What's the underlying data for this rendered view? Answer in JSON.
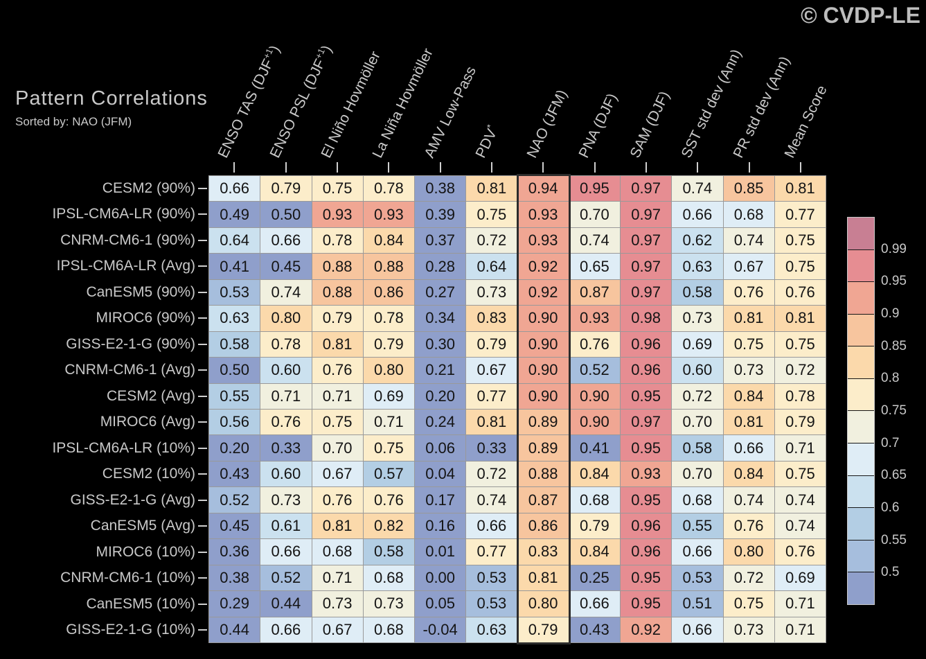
{
  "watermark": "© CVDP-LE",
  "chart_data": {
    "type": "heatmap",
    "title": "Pattern Correlations",
    "subtitle": "Sorted by: NAO (JFM)",
    "sorted_by": "NAO (JFM)",
    "columns": [
      {
        "text": "ENSO TAS (DJF",
        "sup": "+1",
        "post": ")"
      },
      {
        "text": "ENSO PSL (DJF",
        "sup": "+1",
        "post": ")"
      },
      {
        "text": "El Niño Hovmöller"
      },
      {
        "text": "La Niña Hovmöller"
      },
      {
        "text": "AMV Low-Pass"
      },
      {
        "text": "PDV",
        "sup": "*"
      },
      {
        "text": "NAO (JFM)"
      },
      {
        "text": "PNA (DJF)"
      },
      {
        "text": "SAM (DJF)"
      },
      {
        "text": "SST std dev (Ann)"
      },
      {
        "text": "PR std dev (Ann)"
      },
      {
        "text": "Mean Score"
      }
    ],
    "highlighted_column_index": 6,
    "rows": [
      "CESM2 (90%)",
      "IPSL-CM6A-LR (90%)",
      "CNRM-CM6-1 (90%)",
      "IPSL-CM6A-LR (Avg)",
      "CanESM5 (90%)",
      "MIROC6 (90%)",
      "GISS-E2-1-G (90%)",
      "CNRM-CM6-1 (Avg)",
      "CESM2 (Avg)",
      "MIROC6 (Avg)",
      "IPSL-CM6A-LR (10%)",
      "CESM2 (10%)",
      "GISS-E2-1-G (Avg)",
      "CanESM5 (Avg)",
      "MIROC6 (10%)",
      "CNRM-CM6-1 (10%)",
      "CanESM5 (10%)",
      "GISS-E2-1-G (10%)"
    ],
    "values": [
      [
        0.66,
        0.79,
        0.75,
        0.78,
        0.38,
        0.81,
        0.94,
        0.95,
        0.97,
        0.74,
        0.85,
        0.81
      ],
      [
        0.49,
        0.5,
        0.93,
        0.93,
        0.39,
        0.75,
        0.93,
        0.7,
        0.97,
        0.66,
        0.68,
        0.77
      ],
      [
        0.64,
        0.66,
        0.78,
        0.84,
        0.37,
        0.72,
        0.93,
        0.74,
        0.97,
        0.62,
        0.74,
        0.75
      ],
      [
        0.41,
        0.45,
        0.88,
        0.88,
        0.28,
        0.64,
        0.92,
        0.65,
        0.97,
        0.63,
        0.67,
        0.75
      ],
      [
        0.53,
        0.74,
        0.88,
        0.86,
        0.27,
        0.73,
        0.92,
        0.87,
        0.97,
        0.58,
        0.76,
        0.76
      ],
      [
        0.63,
        0.8,
        0.79,
        0.78,
        0.34,
        0.83,
        0.9,
        0.93,
        0.98,
        0.73,
        0.81,
        0.81
      ],
      [
        0.58,
        0.78,
        0.81,
        0.79,
        0.3,
        0.79,
        0.9,
        0.76,
        0.96,
        0.69,
        0.75,
        0.75
      ],
      [
        0.5,
        0.6,
        0.76,
        0.8,
        0.21,
        0.67,
        0.9,
        0.52,
        0.96,
        0.6,
        0.73,
        0.72
      ],
      [
        0.55,
        0.71,
        0.71,
        0.69,
        0.2,
        0.77,
        0.9,
        0.9,
        0.95,
        0.72,
        0.84,
        0.78
      ],
      [
        0.56,
        0.76,
        0.75,
        0.71,
        0.24,
        0.81,
        0.89,
        0.9,
        0.97,
        0.7,
        0.81,
        0.79
      ],
      [
        0.2,
        0.33,
        0.7,
        0.75,
        0.06,
        0.33,
        0.89,
        0.41,
        0.95,
        0.58,
        0.66,
        0.71
      ],
      [
        0.43,
        0.6,
        0.67,
        0.57,
        0.04,
        0.72,
        0.88,
        0.84,
        0.93,
        0.7,
        0.84,
        0.75
      ],
      [
        0.52,
        0.73,
        0.76,
        0.76,
        0.17,
        0.74,
        0.87,
        0.68,
        0.95,
        0.68,
        0.74,
        0.74
      ],
      [
        0.45,
        0.61,
        0.81,
        0.82,
        0.16,
        0.66,
        0.86,
        0.79,
        0.96,
        0.55,
        0.76,
        0.74
      ],
      [
        0.36,
        0.66,
        0.68,
        0.58,
        0.01,
        0.77,
        0.83,
        0.84,
        0.96,
        0.66,
        0.8,
        0.76
      ],
      [
        0.38,
        0.52,
        0.71,
        0.68,
        0.0,
        0.53,
        0.81,
        0.25,
        0.95,
        0.53,
        0.72,
        0.69
      ],
      [
        0.29,
        0.44,
        0.73,
        0.73,
        0.05,
        0.53,
        0.8,
        0.66,
        0.95,
        0.51,
        0.75,
        0.71
      ],
      [
        0.44,
        0.66,
        0.67,
        0.68,
        -0.04,
        0.63,
        0.79,
        0.43,
        0.92,
        0.66,
        0.73,
        0.71
      ]
    ],
    "value_format": "2 decimal places",
    "color_bins": {
      "upper_bounds": [
        0.505,
        0.55,
        0.6,
        0.65,
        0.7,
        0.75,
        0.8,
        0.85,
        0.9,
        0.95,
        0.99
      ],
      "colors": [
        "#8f9fcb",
        "#a6bedd",
        "#b3cee4",
        "#cbe1ef",
        "#dfedf6",
        "#f1f0df",
        "#fcedca",
        "#fbd9ab",
        "#f7c59e",
        "#f0a693",
        "#e68d92",
        "#c87f93"
      ]
    },
    "colorbar": {
      "orientation": "vertical",
      "position": "right",
      "labels_top_to_bottom": [
        "0.99",
        "0.95",
        "0.9",
        "0.85",
        "0.8",
        "0.75",
        "0.7",
        "0.65",
        "0.6",
        "0.55",
        "0.5"
      ]
    },
    "style_colors": {
      "background": "#000000",
      "grid_line": "#999999",
      "axis_label": "#c9c9c9",
      "tick": "#cfcfcf",
      "watermark": "#bdbdbd",
      "cell_text": "#141414",
      "highlight_border": "#2c2c2c"
    }
  }
}
